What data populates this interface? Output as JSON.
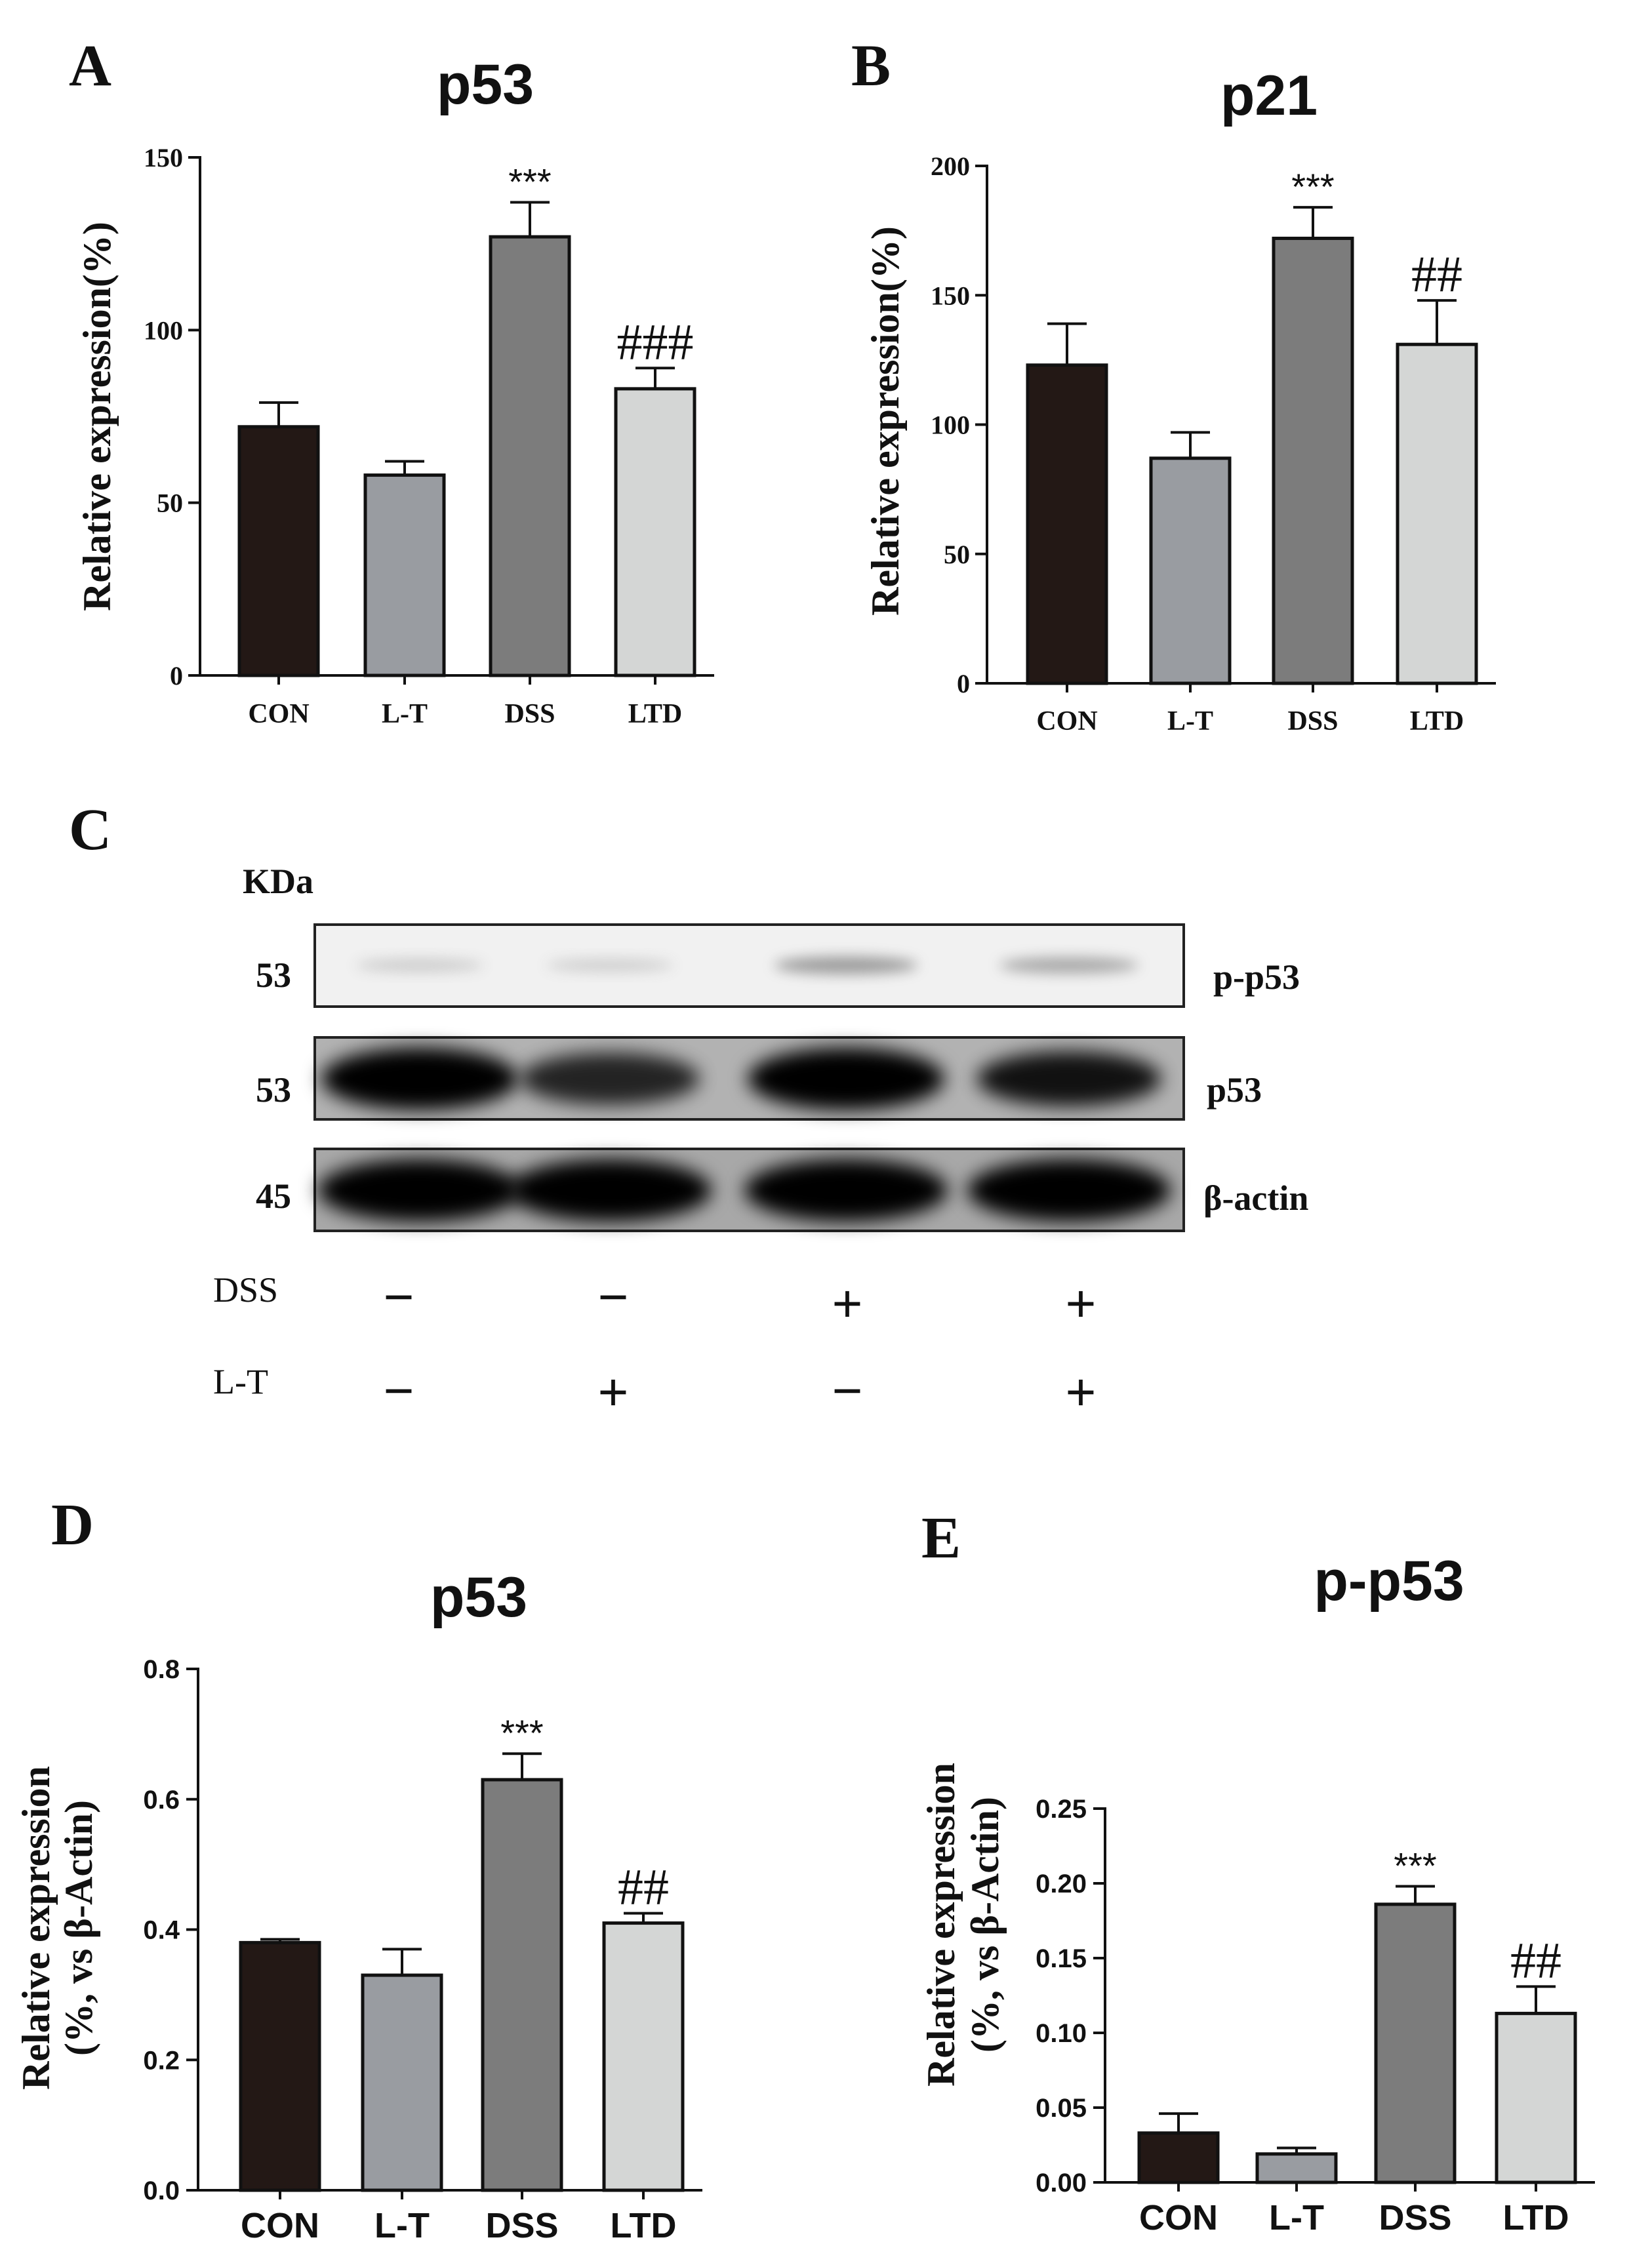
{
  "panel_letters": {
    "a": "A",
    "b": "B",
    "c": "C",
    "d": "D",
    "e": "E"
  },
  "chart_data": [
    {
      "panel": "A",
      "type": "bar",
      "title": "p53",
      "ylabel": "Relative expression(%)",
      "xlabel": "",
      "categories": [
        "CON",
        "L-T",
        "DSS",
        "LTD"
      ],
      "values": [
        72,
        58,
        127,
        83
      ],
      "errors": [
        7,
        4,
        10,
        6
      ],
      "ylim": [
        0,
        150
      ],
      "yticks": [
        0,
        50,
        100,
        150
      ],
      "ytick_labels": [
        "0",
        "50",
        "100",
        "150"
      ],
      "annotations": [
        "",
        "",
        "***",
        "###"
      ],
      "bar_colors": [
        "#231815",
        "#999ca1",
        "#7c7c7c",
        "#d4d6d5"
      ]
    },
    {
      "panel": "B",
      "type": "bar",
      "title": "p21",
      "ylabel": "Relative expression(%)",
      "xlabel": "",
      "categories": [
        "CON",
        "L-T",
        "DSS",
        "LTD"
      ],
      "values": [
        123,
        87,
        172,
        131
      ],
      "errors": [
        16,
        10,
        12,
        17
      ],
      "ylim": [
        0,
        200
      ],
      "yticks": [
        0,
        50,
        100,
        150,
        200
      ],
      "ytick_labels": [
        "0",
        "50",
        "100",
        "150",
        "200"
      ],
      "annotations": [
        "",
        "",
        "***",
        "##"
      ],
      "bar_colors": [
        "#231815",
        "#999ca1",
        "#7c7c7c",
        "#d4d6d5"
      ]
    },
    {
      "panel": "D",
      "type": "bar",
      "title": "p53",
      "ylabel": "Relative expression",
      "ylabel2": "(%, vs β-Actin)",
      "xlabel": "",
      "categories": [
        "CON",
        "L-T",
        "DSS",
        "LTD"
      ],
      "values": [
        0.38,
        0.33,
        0.63,
        0.41
      ],
      "errors": [
        0.005,
        0.04,
        0.04,
        0.015
      ],
      "ylim": [
        0,
        0.8
      ],
      "yticks": [
        0,
        0.2,
        0.4,
        0.6,
        0.8
      ],
      "ytick_labels": [
        "0.0",
        "0.2",
        "0.4",
        "0.6",
        "0.8"
      ],
      "annotations": [
        "",
        "",
        "***",
        "##"
      ],
      "bar_colors": [
        "#231815",
        "#999ca1",
        "#7c7c7c",
        "#d4d6d5"
      ]
    },
    {
      "panel": "E",
      "type": "bar",
      "title": "p-p53",
      "ylabel": "Relative expression",
      "ylabel2": "(%, vs β-Actin)",
      "xlabel": "",
      "categories": [
        "CON",
        "L-T",
        "DSS",
        "LTD"
      ],
      "values": [
        0.033,
        0.019,
        0.186,
        0.113
      ],
      "errors": [
        0.013,
        0.004,
        0.012,
        0.018
      ],
      "ylim": [
        0,
        0.25
      ],
      "yticks": [
        0,
        0.05,
        0.1,
        0.15,
        0.2,
        0.25
      ],
      "ytick_labels": [
        "0.00",
        "0.05",
        "0.10",
        "0.15",
        "0.20",
        "0.25"
      ],
      "annotations": [
        "",
        "",
        "***",
        "##"
      ],
      "bar_colors": [
        "#231815",
        "#999ca1",
        "#7c7c7c",
        "#d4d6d5"
      ]
    }
  ],
  "western_blot": {
    "kda_label": "KDa",
    "rows": [
      {
        "kda": "53",
        "protein": "p-p53",
        "intensities": [
          0.12,
          0.1,
          0.5,
          0.4
        ]
      },
      {
        "kda": "53",
        "protein": "p53",
        "intensities": [
          1.0,
          0.65,
          1.0,
          0.75
        ]
      },
      {
        "kda": "45",
        "protein": "β-actin",
        "intensities": [
          1.0,
          1.0,
          1.0,
          1.0
        ]
      }
    ],
    "conditions": [
      {
        "label": "DSS",
        "values": [
          "−",
          "−",
          "+",
          "+"
        ]
      },
      {
        "label": "L-T",
        "values": [
          "−",
          "+",
          "−",
          "+"
        ]
      }
    ]
  }
}
